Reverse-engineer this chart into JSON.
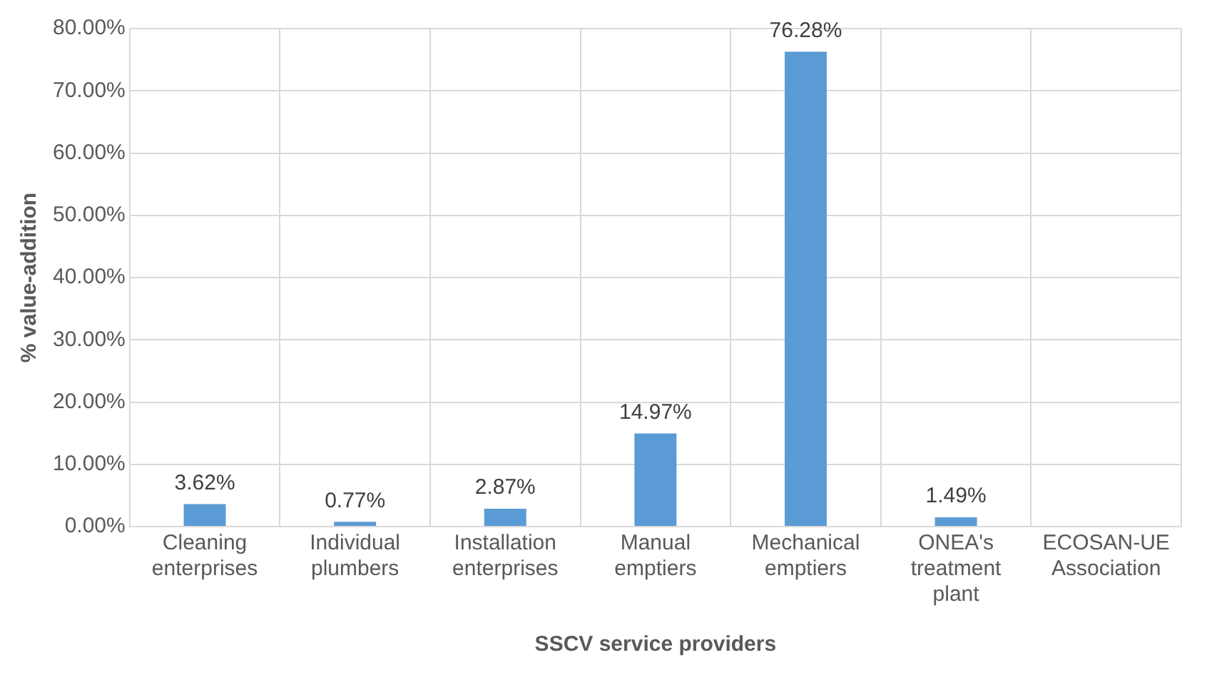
{
  "chart_data": {
    "type": "bar",
    "xlabel": "SSCV service providers",
    "ylabel": "% value-addition",
    "categories": [
      "Cleaning enterprises",
      "Individual plumbers",
      "Installation enterprises",
      "Manual emptiers",
      "Mechanical emptiers",
      "ONEA's treatment plant",
      "ECOSAN-UE Association"
    ],
    "values": [
      3.62,
      0.77,
      2.87,
      14.97,
      76.28,
      1.49,
      null
    ],
    "value_labels": [
      "3.62%",
      "0.77%",
      "2.87%",
      "14.97%",
      "76.28%",
      "1.49%",
      null
    ],
    "color": "#5b9bd5",
    "ylim": [
      0,
      80
    ],
    "yticks": [
      {
        "value": 0,
        "label": "0.00%"
      },
      {
        "value": 10,
        "label": "10.00%"
      },
      {
        "value": 20,
        "label": "20.00%"
      },
      {
        "value": 30,
        "label": "30.00%"
      },
      {
        "value": 40,
        "label": "40.00%"
      },
      {
        "value": 50,
        "label": "50.00%"
      },
      {
        "value": 60,
        "label": "60.00%"
      },
      {
        "value": 70,
        "label": "70.00%"
      },
      {
        "value": 80,
        "label": "80.00%"
      }
    ],
    "grid": true,
    "legend": false
  }
}
